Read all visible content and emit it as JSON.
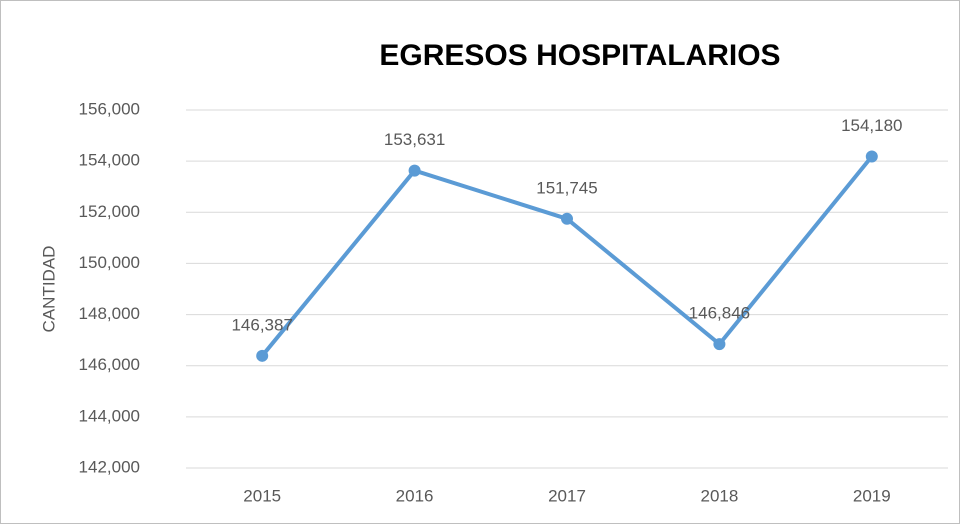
{
  "chart_data": {
    "type": "line",
    "title": "EGRESOS HOSPITALARIOS",
    "y_label": "CANTIDAD",
    "categories": [
      "2015",
      "2016",
      "2017",
      "2018",
      "2019"
    ],
    "series": [
      {
        "name": "Egresos",
        "color": "#5b9bd5",
        "values": [
          146387,
          153631,
          151745,
          146846,
          154180
        ],
        "value_labels": [
          "146,387",
          "153,631",
          "151,745",
          "146,846",
          "154,180"
        ]
      }
    ],
    "ylim": [
      142000,
      156000
    ],
    "yticks": [
      {
        "value": 142000,
        "label": "142,000"
      },
      {
        "value": 144000,
        "label": "144,000"
      },
      {
        "value": 146000,
        "label": "146,000"
      },
      {
        "value": 148000,
        "label": "148,000"
      },
      {
        "value": 150000,
        "label": "150,000"
      },
      {
        "value": 152000,
        "label": "152,000"
      },
      {
        "value": 154000,
        "label": "154,000"
      },
      {
        "value": 156000,
        "label": "156,000"
      }
    ],
    "grid": true
  }
}
